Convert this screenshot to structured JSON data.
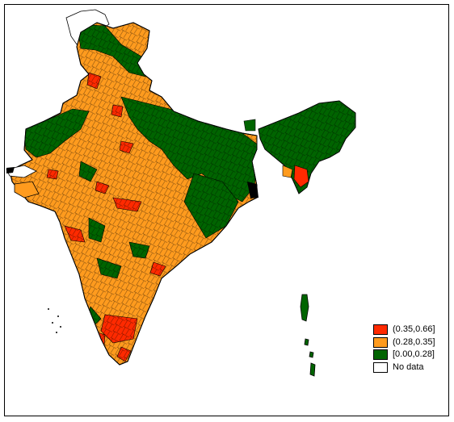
{
  "legend": {
    "items": [
      {
        "label": "(0.35,0.66]",
        "color": "#ff2a00"
      },
      {
        "label": "(0.28,0.35]",
        "color": "#ff9b1e"
      },
      {
        "label": "[0.00,0.28]",
        "color": "#006400"
      },
      {
        "label": "No data",
        "color": "#ffffff"
      }
    ]
  },
  "colors": {
    "high": "#ff2a00",
    "mid": "#ff9b1e",
    "low": "#006400",
    "nodata": "#ffffff",
    "border": "#000000"
  }
}
